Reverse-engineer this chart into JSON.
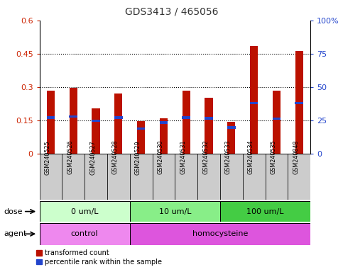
{
  "title": "GDS3413 / 465056",
  "samples": [
    "GSM240525",
    "GSM240526",
    "GSM240527",
    "GSM240528",
    "GSM240529",
    "GSM240530",
    "GSM240531",
    "GSM240532",
    "GSM240533",
    "GSM240534",
    "GSM240535",
    "GSM240848"
  ],
  "red_values": [
    0.285,
    0.295,
    0.205,
    0.272,
    0.148,
    0.158,
    0.285,
    0.252,
    0.143,
    0.485,
    0.285,
    0.463
  ],
  "blue_values": [
    0.163,
    0.168,
    0.148,
    0.162,
    0.113,
    0.14,
    0.163,
    0.16,
    0.118,
    0.228,
    0.157,
    0.228
  ],
  "ylim_left": [
    0,
    0.6
  ],
  "ylim_right": [
    0,
    100
  ],
  "yticks_left": [
    0,
    0.15,
    0.3,
    0.45,
    0.6
  ],
  "yticks_right": [
    0,
    25,
    50,
    75,
    100
  ],
  "ytick_labels_left": [
    "0",
    "0.15",
    "0.3",
    "0.45",
    "0.6"
  ],
  "ytick_labels_right": [
    "0",
    "25",
    "50",
    "75",
    "100%"
  ],
  "dose_groups": [
    {
      "label": "0 um/L",
      "start": 0,
      "end": 4,
      "color": "#ccffcc"
    },
    {
      "label": "10 um/L",
      "start": 4,
      "end": 8,
      "color": "#88ee88"
    },
    {
      "label": "100 um/L",
      "start": 8,
      "end": 12,
      "color": "#44cc44"
    }
  ],
  "agent_groups": [
    {
      "label": "control",
      "start": 0,
      "end": 4,
      "color": "#ee88ee"
    },
    {
      "label": "homocysteine",
      "start": 4,
      "end": 12,
      "color": "#dd55dd"
    }
  ],
  "dose_label": "dose",
  "agent_label": "agent",
  "red_color": "#bb1100",
  "blue_color": "#2244cc",
  "bar_bg_color": "#cccccc",
  "legend_red": "transformed count",
  "legend_blue": "percentile rank within the sample",
  "left_tick_color": "#cc2200",
  "right_tick_color": "#2244cc",
  "title_color": "#333333"
}
